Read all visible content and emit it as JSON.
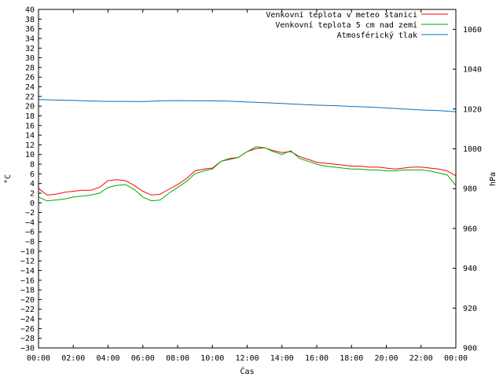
{
  "chart_data": {
    "type": "line",
    "xlabel": "Čas",
    "ylabel_left": "°C",
    "ylabel_right": "hPa",
    "x_tick_labels": [
      "00:00",
      "02:00",
      "04:00",
      "06:00",
      "08:00",
      "10:00",
      "12:00",
      "14:00",
      "16:00",
      "18:00",
      "20:00",
      "22:00",
      "00:00"
    ],
    "x_range_hours": [
      0,
      24
    ],
    "ylim_left": [
      -30,
      40
    ],
    "y_left_step": 2,
    "ylim_right": [
      900,
      1070
    ],
    "y_right_ticks": [
      900,
      920,
      940,
      960,
      980,
      1000,
      1020,
      1040,
      1060
    ],
    "legend_position": "top-right",
    "grid": false,
    "series": [
      {
        "name": "Venkovní teplota v meteo stanici",
        "axis": "left",
        "color": "#ff0000",
        "x": [
          0,
          0.5,
          1,
          1.5,
          2,
          2.5,
          3,
          3.5,
          4,
          4.5,
          5,
          5.5,
          6,
          6.5,
          7,
          7.5,
          8,
          8.5,
          9,
          9.5,
          10,
          10.5,
          11,
          11.5,
          12,
          12.5,
          13,
          13.5,
          14,
          14.5,
          15,
          15.5,
          16,
          16.5,
          17,
          17.5,
          18,
          18.5,
          19,
          19.5,
          20,
          20.5,
          21,
          21.5,
          22,
          22.5,
          23,
          23.5,
          24
        ],
        "values": [
          3,
          1.6,
          1.8,
          2.2,
          2.4,
          2.6,
          2.6,
          3.2,
          4.6,
          4.8,
          4.6,
          3.6,
          2.4,
          1.6,
          1.8,
          2.8,
          3.8,
          5,
          6.6,
          7,
          7.2,
          8.6,
          9,
          9.4,
          10.6,
          11.2,
          11.4,
          10.8,
          10.4,
          10.6,
          9.6,
          9,
          8.4,
          8.2,
          8,
          7.8,
          7.6,
          7.6,
          7.4,
          7.4,
          7.2,
          7,
          7.2,
          7.4,
          7.4,
          7.2,
          7,
          6.6,
          5.6
        ]
      },
      {
        "name": "Venkovní teplota 5 cm nad zemí",
        "axis": "left",
        "color": "#00aa00",
        "x": [
          0,
          0.5,
          1,
          1.5,
          2,
          2.5,
          3,
          3.5,
          4,
          4.5,
          5,
          5.5,
          6,
          6.5,
          7,
          7.5,
          8,
          8.5,
          9,
          9.5,
          10,
          10.5,
          11,
          11.5,
          12,
          12.5,
          13,
          13.5,
          14,
          14.5,
          15,
          15.5,
          16,
          16.5,
          17,
          17.5,
          18,
          18.5,
          19,
          19.5,
          20,
          20.5,
          21,
          21.5,
          22,
          22.5,
          23,
          23.5,
          24
        ],
        "values": [
          1.2,
          0.4,
          0.6,
          0.8,
          1.2,
          1.4,
          1.6,
          2,
          3.2,
          3.6,
          3.8,
          2.8,
          1.2,
          0.4,
          0.6,
          2,
          3.2,
          4.4,
          6,
          6.6,
          7,
          8.6,
          9.2,
          9.4,
          10.6,
          11.6,
          11.4,
          10.6,
          10,
          10.8,
          9.2,
          8.6,
          8,
          7.6,
          7.4,
          7.2,
          7,
          7,
          6.8,
          6.8,
          6.6,
          6.6,
          6.8,
          6.8,
          6.8,
          6.6,
          6.2,
          5.8,
          3.6
        ]
      },
      {
        "name": "Atmosférický tlak",
        "axis": "right",
        "color": "#0070c0",
        "x": [
          0,
          1,
          2,
          3,
          4,
          5,
          6,
          7,
          8,
          9,
          10,
          11,
          12,
          13,
          14,
          15,
          16,
          17,
          18,
          19,
          20,
          21,
          22,
          23,
          24
        ],
        "values": [
          1024.7,
          1024.5,
          1024.3,
          1024,
          1023.8,
          1023.8,
          1023.7,
          1024.1,
          1024.2,
          1024.1,
          1024.1,
          1023.9,
          1023.5,
          1023.2,
          1022.8,
          1022.3,
          1021.9,
          1021.7,
          1021.3,
          1021,
          1020.5,
          1020,
          1019.5,
          1019.2,
          1018.6
        ]
      }
    ]
  }
}
